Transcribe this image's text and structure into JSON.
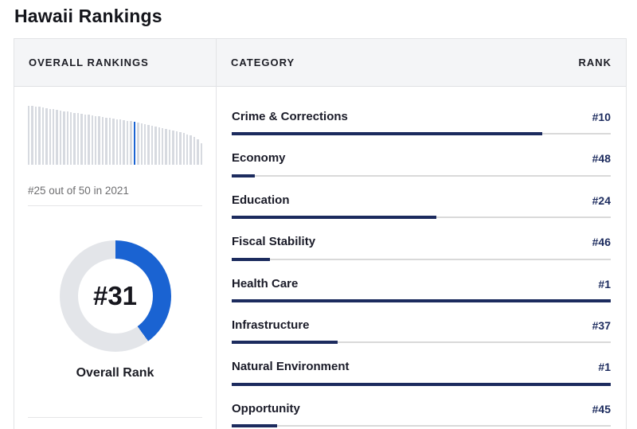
{
  "title": "Hawaii Rankings",
  "colors": {
    "accent_blue": "#1a63d2",
    "navy_bar": "#1c2b5e",
    "bar_track": "#d9d9d9",
    "distribution_gray": "#d7dae0",
    "header_bg": "#f4f5f7"
  },
  "table": {
    "left_header": "OVERALL RANKINGS",
    "category_header": "CATEGORY",
    "rank_header": "RANK"
  },
  "overall": {
    "rank_display": "#31",
    "rank_value": 31,
    "label": "Overall Rank",
    "previous_note": "#25 out of 50 in 2021",
    "donut_percent": 40
  },
  "categories": [
    {
      "label": "Crime & Corrections",
      "rank": "#10",
      "rank_value": 10,
      "bar_percent": 82
    },
    {
      "label": "Economy",
      "rank": "#48",
      "rank_value": 48,
      "bar_percent": 6
    },
    {
      "label": "Education",
      "rank": "#24",
      "rank_value": 24,
      "bar_percent": 54
    },
    {
      "label": "Fiscal Stability",
      "rank": "#46",
      "rank_value": 46,
      "bar_percent": 10
    },
    {
      "label": "Health Care",
      "rank": "#1",
      "rank_value": 1,
      "bar_percent": 100
    },
    {
      "label": "Infrastructure",
      "rank": "#37",
      "rank_value": 37,
      "bar_percent": 28
    },
    {
      "label": "Natural Environment",
      "rank": "#1",
      "rank_value": 1,
      "bar_percent": 100
    },
    {
      "label": "Opportunity",
      "rank": "#45",
      "rank_value": 45,
      "bar_percent": 12
    }
  ],
  "chart_data": [
    {
      "type": "bar",
      "title": "Overall ranking distribution of 50 states (sorted, unlabeled axes)",
      "x": "state positions 1-50",
      "values": [
        74,
        74,
        73,
        73,
        72,
        71,
        70,
        70,
        69,
        68,
        67,
        67,
        66,
        65,
        65,
        64,
        63,
        63,
        62,
        61,
        61,
        60,
        59,
        59,
        58,
        57,
        57,
        56,
        55,
        55,
        54,
        53,
        52,
        51,
        50,
        49,
        48,
        47,
        46,
        45,
        44,
        43,
        42,
        41,
        40,
        38,
        37,
        35,
        32,
        27
      ],
      "highlight_index": 30,
      "highlight_meaning": "Hawaii at overall rank #31",
      "bar_color": "#d7dae0",
      "highlight_color": "#1a63d2",
      "grid": false
    },
    {
      "type": "pie",
      "title": "Overall Rank donut",
      "center_label": "#31",
      "caption": "Overall Rank",
      "slices": [
        {
          "name": "rank position (51-31)/50",
          "value": 40,
          "color": "#1a63d2"
        },
        {
          "name": "remainder",
          "value": 60,
          "color": "#e3e5e9"
        }
      ],
      "start_angle_deg": 0,
      "direction": "clockwise"
    },
    {
      "type": "bar",
      "title": "Category ranks (bar fill = (51 - rank) / 50)",
      "categories": [
        "Crime & Corrections",
        "Economy",
        "Education",
        "Fiscal Stability",
        "Health Care",
        "Infrastructure",
        "Natural Environment",
        "Opportunity"
      ],
      "values": [
        10,
        48,
        24,
        46,
        1,
        37,
        1,
        45
      ],
      "bar_percents": [
        82,
        6,
        54,
        10,
        100,
        28,
        100,
        12
      ],
      "bar_color": "#1c2b5e",
      "track_color": "#d9d9d9"
    }
  ]
}
